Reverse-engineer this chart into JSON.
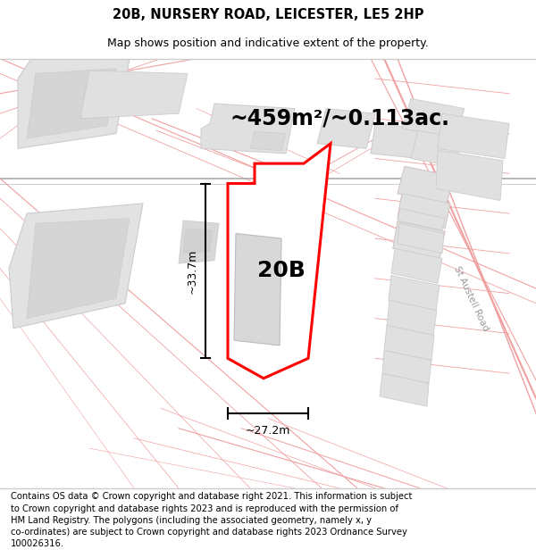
{
  "title_line1": "20B, NURSERY ROAD, LEICESTER, LE5 2HP",
  "title_line2": "Map shows position and indicative extent of the property.",
  "area_label": "~459m²/~0.113ac.",
  "plot_label": "20B",
  "dim_height": "~33.7m",
  "dim_width": "~27.2m",
  "footer_text": "Contains OS data © Crown copyright and database right 2021. This information is subject\nto Crown copyright and database rights 2023 and is reproduced with the permission of\nHM Land Registry. The polygons (including the associated geometry, namely x, y\nco-ordinates) are subject to Crown copyright and database rights 2023 Ordnance Survey\n100026316.",
  "bg_color": "#f5f3f0",
  "road_color": "#f0a0a0",
  "property_line_color": "#cccccc",
  "plot_color": "#ff0000",
  "plot_fill": "#ffffff",
  "building_fill": "#d8d8d8",
  "building_edge": "#bbbbbb",
  "street_label": "St Austell Road",
  "title_fontsize": 10.5,
  "subtitle_fontsize": 9,
  "area_fontsize": 17,
  "plot_label_fontsize": 18,
  "footer_fontsize": 7.2,
  "dim_fontsize": 9
}
